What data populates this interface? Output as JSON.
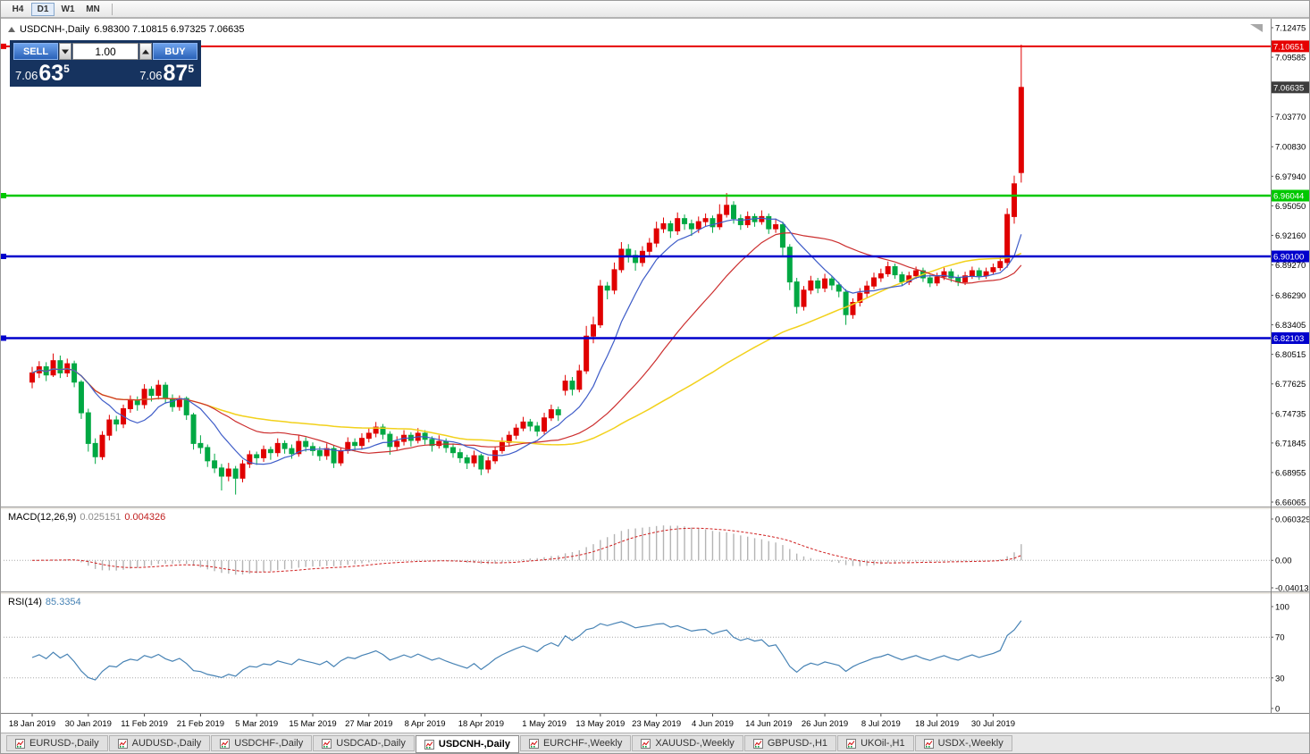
{
  "toolbar": {
    "periods": [
      "H4",
      "D1",
      "W1",
      "MN"
    ],
    "active_period": "D1"
  },
  "chart_title": {
    "symbol_period": "USDCNH-,Daily",
    "ohlc": "6.98300 7.10815 6.97325 7.06635"
  },
  "trade_panel": {
    "sell_label": "SELL",
    "buy_label": "BUY",
    "volume": "1.00",
    "sell_price": {
      "head": "7.06",
      "pips": "63",
      "pip_fraction": "5"
    },
    "buy_price": {
      "head": "7.06",
      "pips": "87",
      "pip_fraction": "5"
    }
  },
  "chart_data": {
    "type": "candlestick",
    "symbol": "USDCNH",
    "timeframe": "Daily",
    "colors": {
      "up": "#e00000",
      "down": "#00a843"
    },
    "price_axis": {
      "max": 7.12475,
      "min": 6.66065,
      "ticks": [
        "7.12475",
        "7.09585",
        "7.03770",
        "7.00830",
        "6.97940",
        "6.95050",
        "6.92160",
        "6.89270",
        "6.86290",
        "6.83405",
        "6.80515",
        "6.77625",
        "6.74735",
        "6.71845",
        "6.68955",
        "6.66065"
      ]
    },
    "current_price": {
      "value": 7.06635,
      "label": "7.06635",
      "box_color": "#3c3c3c"
    },
    "hlines": [
      {
        "price": 7.10651,
        "label": "7.10651",
        "color": "#e60000",
        "width": 2
      },
      {
        "price": 6.96044,
        "label": "6.96044",
        "color": "#00c800",
        "width": 2.5
      },
      {
        "price": 6.901,
        "label": "6.90100",
        "color": "#0000cc",
        "width": 2.5
      },
      {
        "price": 6.82103,
        "label": "6.82103",
        "color": "#0000cc",
        "width": 2.5
      }
    ],
    "moving_averages": [
      {
        "name": "slow",
        "period": 55,
        "color": "#f2d11b",
        "width": 1.5
      },
      {
        "name": "medium",
        "period": 26,
        "color": "#cc2e2e",
        "width": 1.2
      },
      {
        "name": "fast",
        "period": 9,
        "color": "#3e5cc8",
        "width": 1.2
      }
    ],
    "x_labels": [
      {
        "idx": 0,
        "label": "18 Jan 2019"
      },
      {
        "idx": 8,
        "label": "30 Jan 2019"
      },
      {
        "idx": 16,
        "label": "11 Feb 2019"
      },
      {
        "idx": 24,
        "label": "21 Feb 2019"
      },
      {
        "idx": 32,
        "label": "5 Mar 2019"
      },
      {
        "idx": 40,
        "label": "15 Mar 2019"
      },
      {
        "idx": 48,
        "label": "27 Mar 2019"
      },
      {
        "idx": 56,
        "label": "8 Apr 2019"
      },
      {
        "idx": 64,
        "label": "18 Apr 2019"
      },
      {
        "idx": 73,
        "label": "1 May 2019"
      },
      {
        "idx": 81,
        "label": "13 May 2019"
      },
      {
        "idx": 89,
        "label": "23 May 2019"
      },
      {
        "idx": 97,
        "label": "4 Jun 2019"
      },
      {
        "idx": 105,
        "label": "14 Jun 2019"
      },
      {
        "idx": 113,
        "label": "26 Jun 2019"
      },
      {
        "idx": 121,
        "label": "8 Jul 2019"
      },
      {
        "idx": 129,
        "label": "18 Jul 2019"
      },
      {
        "idx": 137,
        "label": "30 Jul 2019"
      }
    ],
    "candles": [
      [
        6.778,
        6.793,
        6.772,
        6.787
      ],
      [
        6.787,
        6.7985,
        6.782,
        6.793
      ],
      [
        6.793,
        6.7975,
        6.779,
        6.785
      ],
      [
        6.785,
        6.806,
        6.783,
        6.799
      ],
      [
        6.799,
        6.804,
        6.782,
        6.787
      ],
      [
        6.787,
        6.801,
        6.783,
        6.796
      ],
      [
        6.796,
        6.799,
        6.773,
        6.778
      ],
      [
        6.778,
        6.78,
        6.742,
        6.748
      ],
      [
        6.748,
        6.752,
        6.71,
        6.718
      ],
      [
        6.718,
        6.723,
        6.698,
        6.705
      ],
      [
        6.705,
        6.73,
        6.702,
        6.726
      ],
      [
        6.726,
        6.746,
        6.721,
        6.741
      ],
      [
        6.741,
        6.745,
        6.73,
        6.737
      ],
      [
        6.737,
        6.756,
        6.733,
        6.752
      ],
      [
        6.752,
        6.765,
        6.748,
        6.76
      ],
      [
        6.76,
        6.764,
        6.75,
        6.756
      ],
      [
        6.756,
        6.776,
        6.752,
        6.771
      ],
      [
        6.771,
        6.774,
        6.759,
        6.765
      ],
      [
        6.765,
        6.78,
        6.761,
        6.775
      ],
      [
        6.775,
        6.778,
        6.757,
        6.762
      ],
      [
        6.762,
        6.766,
        6.749,
        6.754
      ],
      [
        6.754,
        6.765,
        6.75,
        6.762
      ],
      [
        6.762,
        6.764,
        6.741,
        6.746
      ],
      [
        6.746,
        6.748,
        6.712,
        6.718
      ],
      [
        6.718,
        6.726,
        6.708,
        6.714
      ],
      [
        6.714,
        6.717,
        6.695,
        6.701
      ],
      [
        6.701,
        6.708,
        6.689,
        6.694
      ],
      [
        6.694,
        6.698,
        6.672,
        6.686
      ],
      [
        6.686,
        6.699,
        6.681,
        6.693
      ],
      [
        6.693,
        6.696,
        6.668,
        6.684
      ],
      [
        6.684,
        6.702,
        6.68,
        6.698
      ],
      [
        6.698,
        6.711,
        6.694,
        6.707
      ],
      [
        6.707,
        6.71,
        6.697,
        6.704
      ],
      [
        6.704,
        6.716,
        6.7,
        6.712
      ],
      [
        6.712,
        6.715,
        6.702,
        6.709
      ],
      [
        6.709,
        6.723,
        6.705,
        6.718
      ],
      [
        6.718,
        6.721,
        6.708,
        6.713
      ],
      [
        6.713,
        6.717,
        6.703,
        6.708
      ],
      [
        6.708,
        6.726,
        6.705,
        6.72
      ],
      [
        6.72,
        6.724,
        6.71,
        6.715
      ],
      [
        6.715,
        6.719,
        6.706,
        6.711
      ],
      [
        6.711,
        6.715,
        6.701,
        6.706
      ],
      [
        6.706,
        6.718,
        6.702,
        6.713
      ],
      [
        6.713,
        6.716,
        6.694,
        6.699
      ],
      [
        6.699,
        6.714,
        6.696,
        6.711
      ],
      [
        6.711,
        6.724,
        6.708,
        6.719
      ],
      [
        6.719,
        6.723,
        6.71,
        6.716
      ],
      [
        6.716,
        6.728,
        6.712,
        6.723
      ],
      [
        6.723,
        6.733,
        6.719,
        6.728
      ],
      [
        6.728,
        6.739,
        6.724,
        6.734
      ],
      [
        6.734,
        6.737,
        6.722,
        6.727
      ],
      [
        6.727,
        6.73,
        6.707,
        6.715
      ],
      [
        6.715,
        6.725,
        6.711,
        6.72
      ],
      [
        6.72,
        6.731,
        6.716,
        6.726
      ],
      [
        6.726,
        6.729,
        6.715,
        6.721
      ],
      [
        6.721,
        6.733,
        6.718,
        6.728
      ],
      [
        6.728,
        6.731,
        6.717,
        6.722
      ],
      [
        6.722,
        6.725,
        6.71,
        6.716
      ],
      [
        6.716,
        6.726,
        6.713,
        6.72
      ],
      [
        6.72,
        6.723,
        6.709,
        6.714
      ],
      [
        6.714,
        6.718,
        6.704,
        6.709
      ],
      [
        6.709,
        6.713,
        6.699,
        6.704
      ],
      [
        6.704,
        6.707,
        6.693,
        6.699
      ],
      [
        6.699,
        6.711,
        6.695,
        6.706
      ],
      [
        6.706,
        6.708,
        6.687,
        6.693
      ],
      [
        6.693,
        6.705,
        6.689,
        6.701
      ],
      [
        6.701,
        6.715,
        6.698,
        6.711
      ],
      [
        6.711,
        6.724,
        6.708,
        6.719
      ],
      [
        6.719,
        6.73,
        6.715,
        6.726
      ],
      [
        6.726,
        6.737,
        6.722,
        6.733
      ],
      [
        6.733,
        6.744,
        6.73,
        6.739
      ],
      [
        6.739,
        6.742,
        6.73,
        6.735
      ],
      [
        6.735,
        6.739,
        6.725,
        6.73
      ],
      [
        6.73,
        6.748,
        6.727,
        6.743
      ],
      [
        6.743,
        6.756,
        6.74,
        6.751
      ],
      [
        6.751,
        6.754,
        6.74,
        6.746
      ],
      [
        6.77,
        6.785,
        6.765,
        6.779
      ],
      [
        6.779,
        6.783,
        6.765,
        6.771
      ],
      [
        6.771,
        6.795,
        6.768,
        6.789
      ],
      [
        6.789,
        6.833,
        6.786,
        6.823
      ],
      [
        6.823,
        6.842,
        6.816,
        6.834
      ],
      [
        6.834,
        6.878,
        6.831,
        6.872
      ],
      [
        6.872,
        6.876,
        6.859,
        6.868
      ],
      [
        6.868,
        6.895,
        6.864,
        6.888
      ],
      [
        6.888,
        6.915,
        6.885,
        6.908
      ],
      [
        6.908,
        6.913,
        6.895,
        6.902
      ],
      [
        6.902,
        6.907,
        6.887,
        6.895
      ],
      [
        6.895,
        6.911,
        6.891,
        6.906
      ],
      [
        6.906,
        6.919,
        6.902,
        6.914
      ],
      [
        6.914,
        6.935,
        6.91,
        6.928
      ],
      [
        6.928,
        6.939,
        6.924,
        6.933
      ],
      [
        6.933,
        6.936,
        6.919,
        6.926
      ],
      [
        6.926,
        6.944,
        6.922,
        6.938
      ],
      [
        6.938,
        6.942,
        6.927,
        6.933
      ],
      [
        6.933,
        6.937,
        6.921,
        6.928
      ],
      [
        6.928,
        6.94,
        6.924,
        6.935
      ],
      [
        6.935,
        6.943,
        6.93,
        6.938
      ],
      [
        6.938,
        6.941,
        6.924,
        6.93
      ],
      [
        6.93,
        6.952,
        6.927,
        6.942
      ],
      [
        6.942,
        6.963,
        6.939,
        6.951
      ],
      [
        6.951,
        6.955,
        6.933,
        6.938
      ],
      [
        6.938,
        6.942,
        6.927,
        6.932
      ],
      [
        6.932,
        6.945,
        6.929,
        6.94
      ],
      [
        6.94,
        6.943,
        6.93,
        6.935
      ],
      [
        6.935,
        6.946,
        6.932,
        6.94
      ],
      [
        6.94,
        6.943,
        6.923,
        6.928
      ],
      [
        6.928,
        6.938,
        6.924,
        6.932
      ],
      [
        6.932,
        6.935,
        6.902,
        6.91
      ],
      [
        6.91,
        6.913,
        6.868,
        6.876
      ],
      [
        6.876,
        6.88,
        6.845,
        6.852
      ],
      [
        6.852,
        6.872,
        6.848,
        6.868
      ],
      [
        6.868,
        6.882,
        6.864,
        6.877
      ],
      [
        6.877,
        6.88,
        6.865,
        6.87
      ],
      [
        6.87,
        6.884,
        6.866,
        6.879
      ],
      [
        6.879,
        6.882,
        6.868,
        6.873
      ],
      [
        6.873,
        6.876,
        6.861,
        6.867
      ],
      [
        6.866,
        6.869,
        6.834,
        6.844
      ],
      [
        6.844,
        6.86,
        6.84,
        6.856
      ],
      [
        6.856,
        6.87,
        6.852,
        6.865
      ],
      [
        6.865,
        6.877,
        6.861,
        6.872
      ],
      [
        6.872,
        6.885,
        6.869,
        6.88
      ],
      [
        6.88,
        6.889,
        6.876,
        6.884
      ],
      [
        6.884,
        6.896,
        6.881,
        6.891
      ],
      [
        6.891,
        6.894,
        6.879,
        6.883
      ],
      [
        6.883,
        6.886,
        6.872,
        6.876
      ],
      [
        6.876,
        6.886,
        6.873,
        6.882
      ],
      [
        6.882,
        6.891,
        6.879,
        6.887
      ],
      [
        6.887,
        6.89,
        6.876,
        6.88
      ],
      [
        6.88,
        6.883,
        6.871,
        6.875
      ],
      [
        6.875,
        6.885,
        6.872,
        6.881
      ],
      [
        6.881,
        6.89,
        6.878,
        6.886
      ],
      [
        6.886,
        6.889,
        6.876,
        6.88
      ],
      [
        6.88,
        6.883,
        6.872,
        6.876
      ],
      [
        6.876,
        6.886,
        6.873,
        6.882
      ],
      [
        6.882,
        6.891,
        6.879,
        6.887
      ],
      [
        6.887,
        6.89,
        6.878,
        6.882
      ],
      [
        6.882,
        6.89,
        6.879,
        6.886
      ],
      [
        6.886,
        6.894,
        6.883,
        6.89
      ],
      [
        6.89,
        6.9,
        6.887,
        6.896
      ],
      [
        6.895,
        6.948,
        6.89,
        6.942
      ],
      [
        6.94,
        6.98,
        6.933,
        6.972
      ],
      [
        6.983,
        7.10815,
        6.97325,
        7.06635
      ]
    ],
    "indicators": {
      "macd": {
        "label": "MACD(12,26,9)",
        "value_main": "0.025151",
        "value_signal": "0.004326",
        "params": {
          "fast": 12,
          "slow": 26,
          "signal": 9
        },
        "range": {
          "max": 0.060329,
          "min": -0.040135
        },
        "scale_labels": [
          "0.060329",
          "0.00",
          "-0.040135"
        ],
        "colors": {
          "histogram": "#b4b4b4",
          "signal": "#d02020"
        }
      },
      "rsi": {
        "label": "RSI(14)",
        "value": "85.3354",
        "period": 14,
        "levels": [
          70,
          30
        ],
        "range": {
          "max": 100,
          "min": 0
        },
        "scale_labels": [
          "100",
          "70",
          "30",
          "0"
        ],
        "color": "#4682b4"
      }
    }
  },
  "tabs": [
    {
      "label": "EURUSD-,Daily",
      "active": false
    },
    {
      "label": "AUDUSD-,Daily",
      "active": false
    },
    {
      "label": "USDCHF-,Daily",
      "active": false
    },
    {
      "label": "USDCAD-,Daily",
      "active": false
    },
    {
      "label": "USDCNH-,Daily",
      "active": true
    },
    {
      "label": "EURCHF-,Weekly",
      "active": false
    },
    {
      "label": "XAUUSD-,Weekly",
      "active": false
    },
    {
      "label": "GBPUSD-,H1",
      "active": false
    },
    {
      "label": "UKOil-,H1",
      "active": false
    },
    {
      "label": "USDX-,Weekly",
      "active": false
    }
  ]
}
